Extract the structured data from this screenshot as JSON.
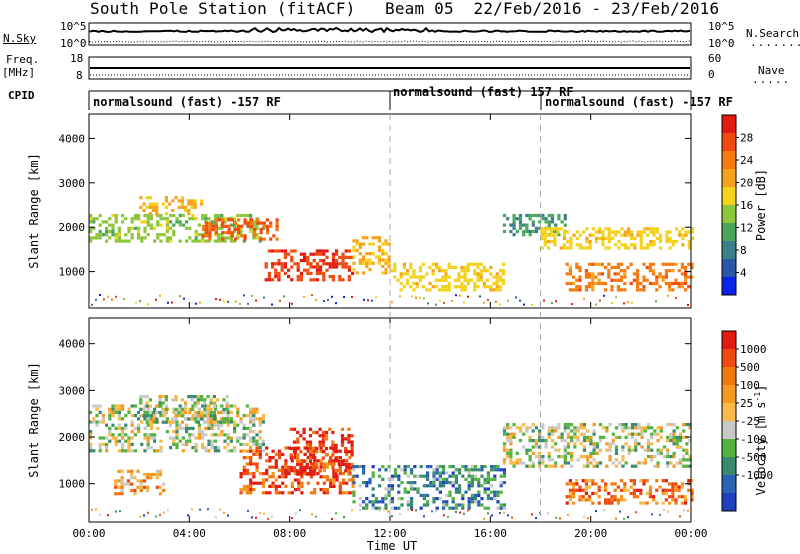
{
  "header": {
    "title": "South Pole Station (fitACF)",
    "beam": "Beam 05",
    "dates": "22/Feb/2016 - 23/Feb/2016"
  },
  "aux_panels": {
    "nsky_label": "N.Sky",
    "nsky_top": "10^5",
    "nsky_bot": "10^0",
    "nsearch_label": "N.Search",
    "freq_label_1": "Freq.",
    "freq_label_2": "[MHz]",
    "freq_top": "18",
    "freq_bot": "8",
    "nave_top": "60",
    "nave_bot": "0",
    "nave_label": "Nave",
    "cpid_label": "CPID"
  },
  "cpid_segments": [
    {
      "text": "normalsound (fast) -157 RF",
      "start_hour": 0
    },
    {
      "text": "normalsound (fast) 157 RF",
      "start_hour": 12
    },
    {
      "text": "normalsound (fast) -157 RF",
      "start_hour": 18
    }
  ],
  "chart_data": [
    {
      "type": "heatmap",
      "name": "power",
      "ylabel": "Slant Range [km]",
      "xlabel": "",
      "xlim_hours": [
        0,
        24
      ],
      "ylim": [
        180,
        4550
      ],
      "y_ticks": [
        1000,
        2000,
        3000,
        4000
      ],
      "colorbar": {
        "label": "Power [dB]",
        "range": [
          0,
          32
        ],
        "ticks": [
          "4",
          "8",
          "12",
          "16",
          "20",
          "24",
          "28"
        ],
        "colors": [
          "#0b22e8",
          "#2a56a8",
          "#3b7f8a",
          "#4aa65a",
          "#8cc63a",
          "#f2d21b",
          "#f6a21a",
          "#f57a10",
          "#f04a10",
          "#e21a10"
        ]
      },
      "bands": [
        {
          "h0": 0.0,
          "h1": 7.0,
          "r0": 1700,
          "r1": 2300,
          "level": 14
        },
        {
          "h0": 2.0,
          "h1": 4.5,
          "r0": 2300,
          "r1": 2700,
          "level": 20
        },
        {
          "h0": 4.5,
          "h1": 7.5,
          "r0": 1700,
          "r1": 2200,
          "level": 26
        },
        {
          "h0": 7.0,
          "h1": 10.5,
          "r0": 800,
          "r1": 1500,
          "level": 28
        },
        {
          "h0": 10.5,
          "h1": 12.0,
          "r0": 1000,
          "r1": 1800,
          "level": 20
        },
        {
          "h0": 12.0,
          "h1": 16.5,
          "r0": 600,
          "r1": 1200,
          "level": 18
        },
        {
          "h0": 16.5,
          "h1": 19.0,
          "r0": 1800,
          "r1": 2300,
          "level": 10
        },
        {
          "h0": 18.0,
          "h1": 24.0,
          "r0": 1500,
          "r1": 2000,
          "level": 18
        },
        {
          "h0": 19.0,
          "h1": 24.0,
          "r0": 600,
          "r1": 1200,
          "level": 24
        }
      ]
    },
    {
      "type": "heatmap",
      "name": "velocity",
      "ylabel": "Slant Range [km]",
      "xlabel": "Time UT",
      "xlim_hours": [
        0,
        24
      ],
      "ylim": [
        180,
        4550
      ],
      "y_ticks": [
        1000,
        2000,
        3000,
        4000
      ],
      "x_ticks": [
        "00:00",
        "04:00",
        "08:00",
        "12:00",
        "16:00",
        "20:00",
        "00:00"
      ],
      "colorbar": {
        "label": "Velocity [m s",
        "label_sup": "-1",
        "label_close": "]",
        "ticks": [
          "1000",
          "500",
          "100",
          "25",
          "-25",
          "-100",
          "-500",
          "-1000"
        ],
        "colors": [
          "#1f3fbf",
          "#2a63b3",
          "#3a8a6e",
          "#52b43e",
          "#c8c8c8",
          "#f8b84a",
          "#f59a20",
          "#f07a10",
          "#f04a10",
          "#e21a10"
        ]
      },
      "bands": [
        {
          "h0": 0.0,
          "h1": 7.0,
          "r0": 1700,
          "r1": 2700,
          "level": 4
        },
        {
          "h0": 2.0,
          "h1": 5.5,
          "r0": 2300,
          "r1": 2900,
          "level": 4
        },
        {
          "h0": 1.0,
          "h1": 3.0,
          "r0": 800,
          "r1": 1300,
          "level": 6
        },
        {
          "h0": 6.0,
          "h1": 10.5,
          "r0": 800,
          "r1": 1800,
          "level": 8
        },
        {
          "h0": 8.0,
          "h1": 10.5,
          "r0": 1200,
          "r1": 2200,
          "level": 9
        },
        {
          "h0": 10.5,
          "h1": 16.5,
          "r0": 500,
          "r1": 1400,
          "level": 2
        },
        {
          "h0": 16.5,
          "h1": 24.0,
          "r0": 1400,
          "r1": 2300,
          "level": 4
        },
        {
          "h0": 19.0,
          "h1": 24.0,
          "r0": 600,
          "r1": 1100,
          "level": 7
        }
      ]
    }
  ]
}
